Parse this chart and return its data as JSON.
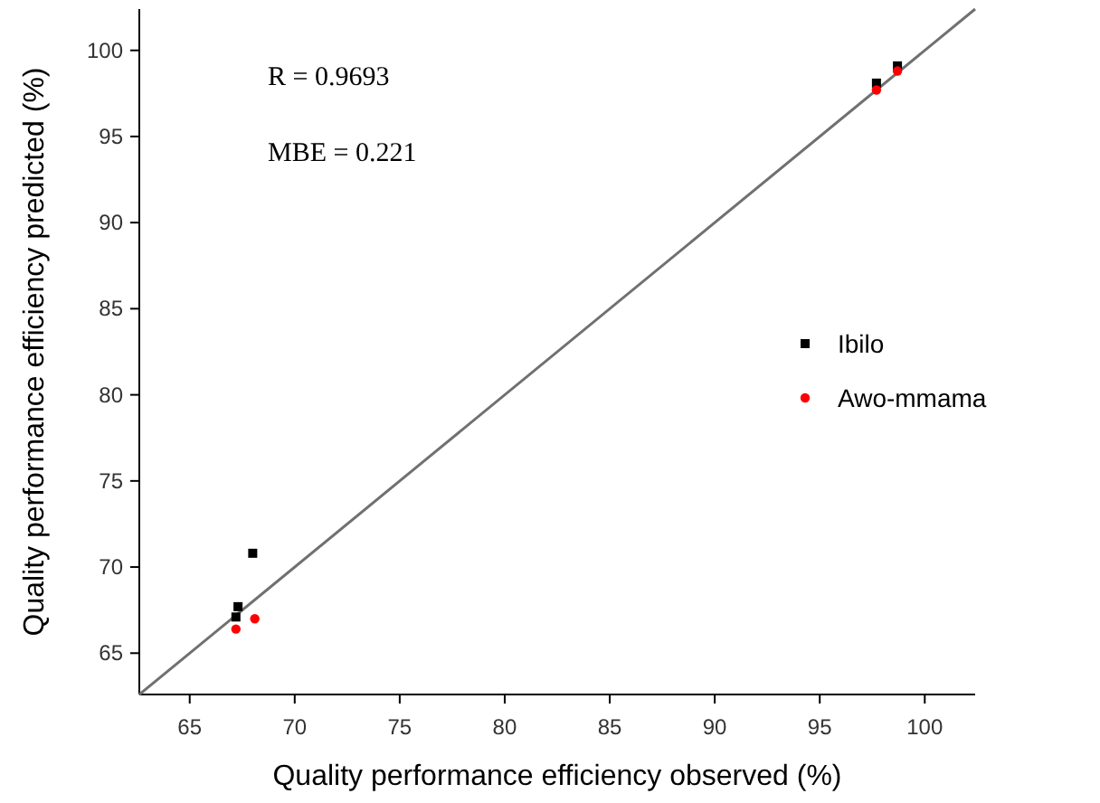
{
  "chart_data": {
    "type": "scatter",
    "xlabel": "Quality performance efficiency observed (%)",
    "ylabel": "Quality performance efficiency predicted (%)",
    "xlim": [
      62.6,
      102.4
    ],
    "ylim": [
      62.6,
      102.4
    ],
    "xticks": [
      65,
      70,
      75,
      80,
      85,
      90,
      95,
      100
    ],
    "yticks": [
      65,
      70,
      75,
      80,
      85,
      90,
      95,
      100
    ],
    "series": [
      {
        "type": "line",
        "color": "#707070",
        "x": [
          62.6,
          102.4
        ],
        "values": [
          62.6,
          102.4
        ],
        "marker": "none"
      },
      {
        "name": "Ibilo",
        "color": "#000000",
        "marker": "square",
        "x": [
          67.2,
          67.3,
          68.0,
          97.7,
          98.7
        ],
        "values": [
          67.1,
          67.7,
          70.8,
          98.1,
          99.1
        ]
      },
      {
        "name": "Awo-mmama",
        "color": "#ff0000",
        "marker": "circle",
        "x": [
          67.2,
          68.1,
          97.7,
          98.7
        ],
        "values": [
          66.4,
          67.0,
          97.7,
          98.8
        ]
      }
    ],
    "legend": "right",
    "grid": false,
    "annotations": [
      "R = 0.9693",
      "MBE = 0.221"
    ]
  }
}
